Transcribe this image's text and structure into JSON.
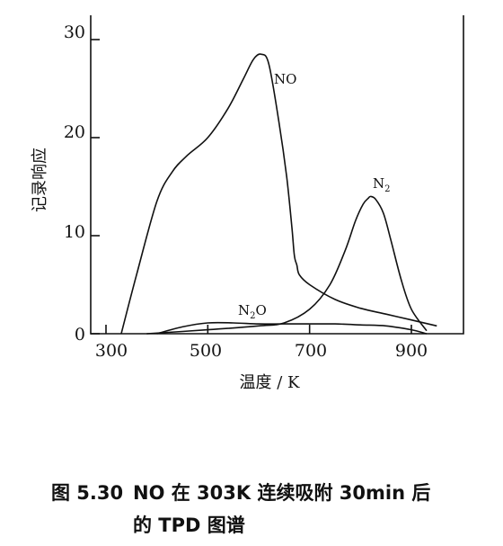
{
  "chart_data": {
    "type": "line",
    "xlabel": "温度 / K",
    "ylabel": "记录响应",
    "xlim": [
      260,
      1000
    ],
    "ylim": [
      0,
      32
    ],
    "xticks": [
      300,
      500,
      700,
      900
    ],
    "yticks": [
      0,
      10,
      20,
      30
    ],
    "series": [
      {
        "name": "NO",
        "x": [
          330,
          360,
          400,
          430,
          460,
          500,
          540,
          570,
          590,
          605,
          620,
          640,
          655,
          665,
          670,
          675,
          680,
          700,
          750,
          800,
          850,
          900,
          950
        ],
        "y": [
          0,
          6,
          13.5,
          16.5,
          18.2,
          20,
          23,
          26,
          28,
          28.5,
          27.5,
          21.5,
          16,
          11,
          8,
          7,
          6,
          5,
          3.5,
          2.6,
          2,
          1.4,
          0.8
        ]
      },
      {
        "name": "N2",
        "x": [
          380,
          500,
          600,
          650,
          700,
          740,
          770,
          790,
          805,
          815,
          820,
          830,
          845,
          860,
          880,
          900,
          930
        ],
        "y": [
          0,
          0.4,
          0.8,
          1.1,
          2.5,
          5,
          8.5,
          11.5,
          13.2,
          13.8,
          14,
          13.7,
          12.3,
          9.5,
          5.5,
          2.5,
          0.3
        ]
      },
      {
        "name": "N2O",
        "x": [
          400,
          450,
          500,
          550,
          600,
          650,
          700,
          750,
          800,
          850,
          900,
          930
        ],
        "y": [
          0,
          0.7,
          1.1,
          1.1,
          1.0,
          1.0,
          1.0,
          1.0,
          0.9,
          0.8,
          0.4,
          0
        ]
      }
    ]
  },
  "labels": {
    "xlabel": "温度 / K",
    "ylabel": "记录响应",
    "xticks": [
      "300",
      "500",
      "700",
      "900"
    ],
    "yticks": [
      "0",
      "10",
      "20",
      "30"
    ],
    "series": [
      "NO",
      "N",
      "2",
      "N",
      "2",
      "O"
    ]
  },
  "caption": {
    "number": "图 5.30",
    "line1": "NO 在 303K 连续吸附 30min 后",
    "line2": "的 TPD 图谱"
  }
}
